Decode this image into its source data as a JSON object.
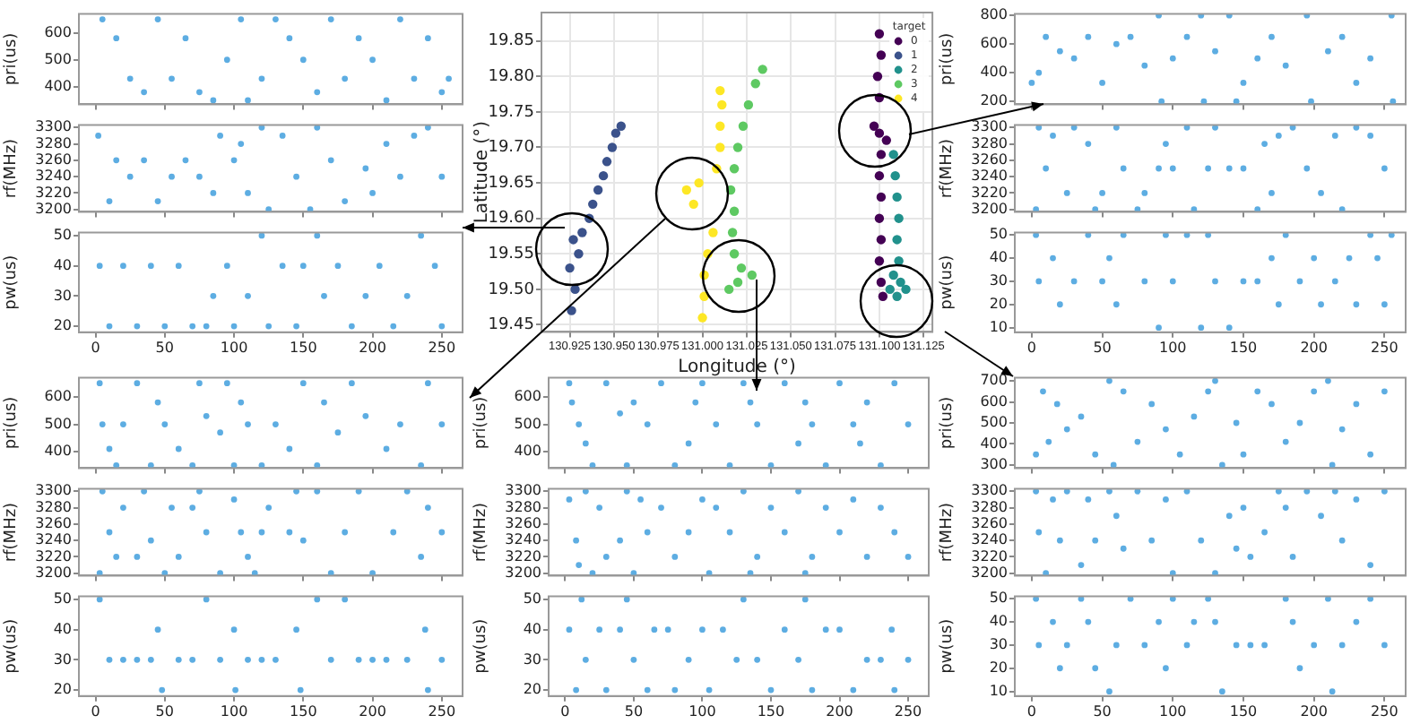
{
  "chart_data": [
    {
      "type": "scatter",
      "ylabel": "pri(us)",
      "xlim": [
        -12,
        265
      ],
      "xticks": [
        0,
        50,
        100,
        150,
        200,
        250
      ],
      "ylim": [
        335,
        670
      ],
      "yticks": [
        400,
        500,
        600
      ],
      "tick_labels": "y",
      "marker": "circle",
      "color": "#5dade2",
      "x": [
        5,
        15,
        25,
        35,
        45,
        55,
        65,
        75,
        85,
        95,
        105,
        110,
        120,
        130,
        140,
        150,
        160,
        170,
        180,
        190,
        200,
        210,
        220,
        230,
        240,
        250,
        255
      ],
      "values": [
        650,
        580,
        430,
        380,
        650,
        430,
        580,
        380,
        350,
        500,
        650,
        350,
        430,
        650,
        580,
        500,
        380,
        650,
        430,
        580,
        500,
        350,
        650,
        430,
        580,
        380,
        430
      ]
    },
    {
      "type": "scatter",
      "ylabel": "rf(MHz)",
      "xlim": [
        -12,
        265
      ],
      "xticks": [
        0,
        50,
        100,
        150,
        200,
        250
      ],
      "ylim": [
        3197,
        3303
      ],
      "yticks": [
        3200,
        3220,
        3240,
        3260,
        3280,
        3300
      ],
      "tick_labels": "y",
      "marker": "circle",
      "color": "#5dade2",
      "x": [
        2,
        10,
        15,
        25,
        35,
        45,
        55,
        65,
        75,
        85,
        90,
        100,
        105,
        110,
        120,
        125,
        135,
        145,
        155,
        160,
        170,
        180,
        195,
        200,
        210,
        220,
        230,
        240,
        250
      ],
      "values": [
        3290,
        3210,
        3260,
        3240,
        3260,
        3210,
        3240,
        3260,
        3240,
        3220,
        3290,
        3260,
        3280,
        3220,
        3300,
        3200,
        3290,
        3240,
        3200,
        3300,
        3260,
        3210,
        3250,
        3220,
        3280,
        3240,
        3290,
        3300,
        3240
      ]
    },
    {
      "type": "scatter",
      "ylabel": "pw(us)",
      "xlim": [
        -12,
        265
      ],
      "xticks": [
        0,
        50,
        100,
        150,
        200,
        250
      ],
      "ylim": [
        18,
        51
      ],
      "yticks": [
        20,
        30,
        40,
        50
      ],
      "marker": "circle",
      "color": "#5dade2",
      "x": [
        3,
        10,
        20,
        30,
        40,
        50,
        60,
        70,
        80,
        85,
        95,
        100,
        110,
        120,
        125,
        135,
        145,
        150,
        160,
        165,
        175,
        185,
        195,
        205,
        215,
        225,
        235,
        245,
        250
      ],
      "values": [
        40,
        20,
        40,
        20,
        40,
        20,
        40,
        20,
        20,
        30,
        40,
        20,
        30,
        50,
        20,
        40,
        20,
        40,
        50,
        30,
        40,
        20,
        30,
        40,
        20,
        30,
        50,
        40,
        20
      ]
    },
    {
      "type": "scatter",
      "xlabel": "Longitude (°)",
      "ylabel": "Latitude (°)",
      "legend_title": "target",
      "legend": "top right",
      "grid": true,
      "marker": "circle",
      "xlim": [
        130.909,
        131.13
      ],
      "xticks": [
        130.925,
        {
          "value": 130.95,
          "label": "130.950"
        },
        130.975,
        {
          "value": 131,
          "label": "131.000"
        },
        131.025,
        {
          "value": 131.05,
          "label": "131.050"
        },
        131.075,
        {
          "value": 131.1,
          "label": "131.100"
        },
        131.125
      ],
      "ylim": [
        19.44,
        19.89
      ],
      "yticks": [
        19.45,
        {
          "value": 19.5,
          "label": "19.50"
        },
        19.55,
        {
          "value": 19.6,
          "label": "19.60"
        },
        19.65,
        {
          "value": 19.7,
          "label": "19.70"
        },
        19.75,
        {
          "value": 19.8,
          "label": "19.80"
        },
        19.85
      ],
      "series": [
        {
          "name": "0",
          "color": "#440154",
          "x": [
            131.1,
            131.101,
            131.099,
            131.1,
            131.097,
            131.1,
            131.104,
            131.101,
            131.1,
            131.101,
            131.1,
            131.101,
            131.1,
            131.101,
            131.102
          ],
          "values": [
            19.86,
            19.83,
            19.8,
            19.77,
            19.73,
            19.72,
            19.71,
            19.69,
            19.66,
            19.63,
            19.6,
            19.57,
            19.54,
            19.51,
            19.49
          ]
        },
        {
          "name": "1",
          "color": "#3b528b",
          "x": [
            130.926,
            130.928,
            130.925,
            130.93,
            130.927,
            130.932,
            130.936,
            130.938,
            130.941,
            130.944,
            130.946,
            130.949,
            130.951,
            130.954
          ],
          "values": [
            19.47,
            19.5,
            19.53,
            19.55,
            19.57,
            19.58,
            19.6,
            19.62,
            19.64,
            19.66,
            19.68,
            19.7,
            19.72,
            19.73
          ]
        },
        {
          "name": "2",
          "color": "#21918c",
          "x": [
            131.108,
            131.109,
            131.11,
            131.111,
            131.11,
            131.111,
            131.108,
            131.112,
            131.106,
            131.11,
            131.115
          ],
          "values": [
            19.69,
            19.66,
            19.63,
            19.6,
            19.57,
            19.54,
            19.52,
            19.51,
            19.5,
            19.49,
            19.5
          ]
        },
        {
          "name": "3",
          "color": "#5ec962",
          "x": [
            131.015,
            131.02,
            131.022,
            131.018,
            131.017,
            131.018,
            131.016,
            131.018,
            131.02,
            131.023,
            131.026,
            131.03,
            131.034,
            131.028
          ],
          "values": [
            19.5,
            19.51,
            19.53,
            19.55,
            19.58,
            19.61,
            19.64,
            19.67,
            19.7,
            19.73,
            19.76,
            19.79,
            19.81,
            19.52
          ]
        },
        {
          "name": "4",
          "color": "#fde725",
          "x": [
            131,
            131.001,
            131.001,
            131.003,
            131.006,
            130.995,
            130.991,
            130.998,
            131.008,
            131.01,
            131.01,
            131.011,
            131.01
          ],
          "values": [
            19.46,
            19.49,
            19.52,
            19.55,
            19.58,
            19.62,
            19.64,
            19.65,
            19.67,
            19.7,
            19.73,
            19.76,
            19.78
          ]
        }
      ]
    },
    {
      "type": "scatter",
      "ylabel": "pri(us)",
      "xlim": [
        -12,
        265
      ],
      "xticks": [
        0,
        50,
        100,
        150,
        200,
        250
      ],
      "ylim": [
        180,
        810
      ],
      "yticks": [
        200,
        400,
        600,
        800
      ],
      "tick_labels": "y",
      "marker": "circle",
      "color": "#5dade2",
      "x": [
        0,
        5,
        10,
        20,
        30,
        40,
        50,
        60,
        70,
        80,
        90,
        92,
        100,
        110,
        120,
        122,
        130,
        140,
        145,
        150,
        160,
        170,
        180,
        195,
        198,
        210,
        220,
        230,
        240,
        255,
        256
      ],
      "values": [
        330,
        400,
        650,
        550,
        500,
        650,
        330,
        600,
        650,
        450,
        800,
        200,
        500,
        650,
        800,
        200,
        550,
        800,
        200,
        330,
        500,
        650,
        450,
        800,
        200,
        550,
        650,
        330,
        500,
        800,
        200
      ]
    },
    {
      "type": "scatter",
      "ylabel": "rf(MHz)",
      "xlim": [
        -12,
        265
      ],
      "xticks": [
        0,
        50,
        100,
        150,
        200,
        250
      ],
      "ylim": [
        3197,
        3303
      ],
      "yticks": [
        3200,
        3220,
        3240,
        3260,
        3280,
        3300
      ],
      "tick_labels": "y",
      "marker": "circle",
      "color": "#5dade2",
      "x": [
        3,
        5,
        10,
        15,
        25,
        30,
        40,
        45,
        50,
        60,
        65,
        75,
        80,
        90,
        95,
        100,
        110,
        115,
        125,
        130,
        140,
        150,
        160,
        165,
        170,
        175,
        185,
        195,
        205,
        215,
        220,
        230,
        240,
        250
      ],
      "values": [
        3200,
        3300,
        3250,
        3290,
        3220,
        3300,
        3280,
        3200,
        3220,
        3300,
        3250,
        3200,
        3220,
        3250,
        3280,
        3250,
        3300,
        3200,
        3250,
        3300,
        3250,
        3250,
        3200,
        3280,
        3220,
        3290,
        3300,
        3250,
        3220,
        3290,
        3200,
        3300,
        3290,
        3250
      ]
    },
    {
      "type": "scatter",
      "ylabel": "pw(us)",
      "xlim": [
        -12,
        265
      ],
      "xticks": [
        0,
        50,
        100,
        150,
        200,
        250
      ],
      "ylim": [
        8,
        51
      ],
      "yticks": [
        10,
        20,
        30,
        40,
        50
      ],
      "marker": "circle",
      "color": "#5dade2",
      "x": [
        3,
        5,
        15,
        20,
        30,
        40,
        50,
        55,
        60,
        65,
        80,
        90,
        95,
        100,
        110,
        120,
        125,
        130,
        140,
        150,
        160,
        170,
        175,
        180,
        190,
        200,
        205,
        215,
        225,
        230,
        240,
        245,
        250,
        255
      ],
      "values": [
        50,
        30,
        40,
        20,
        30,
        50,
        30,
        40,
        20,
        50,
        30,
        10,
        50,
        30,
        50,
        10,
        50,
        30,
        10,
        30,
        30,
        40,
        20,
        50,
        30,
        40,
        20,
        30,
        40,
        20,
        50,
        40,
        20,
        50
      ]
    },
    {
      "type": "scatter",
      "ylabel": "pri(us)",
      "xlim": [
        -12,
        265
      ],
      "xticks": [
        0,
        50,
        100,
        150,
        200,
        250
      ],
      "ylim": [
        340,
        670
      ],
      "yticks": [
        400,
        500,
        600
      ],
      "tick_labels": "y",
      "marker": "circle",
      "color": "#5dade2",
      "x": [
        3,
        5,
        10,
        15,
        20,
        30,
        40,
        45,
        50,
        60,
        70,
        75,
        80,
        90,
        95,
        100,
        105,
        110,
        120,
        130,
        140,
        150,
        160,
        165,
        175,
        185,
        195,
        210,
        220,
        235,
        240,
        250
      ],
      "values": [
        650,
        500,
        410,
        350,
        500,
        650,
        350,
        580,
        500,
        410,
        350,
        650,
        530,
        470,
        650,
        350,
        580,
        500,
        350,
        500,
        410,
        650,
        350,
        580,
        470,
        650,
        530,
        410,
        500,
        350,
        650,
        500
      ]
    },
    {
      "type": "scatter",
      "ylabel": "rf(MHz)",
      "xlim": [
        -12,
        265
      ],
      "xticks": [
        0,
        50,
        100,
        150,
        200,
        250
      ],
      "ylim": [
        3197,
        3303
      ],
      "yticks": [
        3200,
        3220,
        3240,
        3260,
        3280,
        3300
      ],
      "tick_labels": "y",
      "marker": "circle",
      "color": "#5dade2",
      "x": [
        3,
        5,
        10,
        15,
        20,
        30,
        35,
        40,
        50,
        55,
        60,
        70,
        75,
        80,
        90,
        100,
        105,
        110,
        115,
        120,
        125,
        140,
        145,
        150,
        160,
        170,
        180,
        190,
        200,
        215,
        225,
        235,
        240,
        250
      ],
      "values": [
        3200,
        3300,
        3250,
        3220,
        3280,
        3220,
        3300,
        3240,
        3200,
        3280,
        3220,
        3280,
        3300,
        3250,
        3200,
        3290,
        3250,
        3220,
        3200,
        3250,
        3280,
        3250,
        3300,
        3240,
        3300,
        3200,
        3250,
        3300,
        3200,
        3250,
        3300,
        3220,
        3280,
        3250
      ]
    },
    {
      "type": "scatter",
      "ylabel": "pw(us)",
      "xlim": [
        -12,
        265
      ],
      "xticks": [
        0,
        50,
        100,
        150,
        200,
        250
      ],
      "ylim": [
        18,
        51
      ],
      "yticks": [
        20,
        30,
        40,
        50
      ],
      "marker": "circle",
      "color": "#5dade2",
      "x": [
        3,
        10,
        20,
        30,
        40,
        45,
        48,
        60,
        70,
        80,
        90,
        100,
        101,
        110,
        120,
        130,
        145,
        148,
        160,
        170,
        180,
        190,
        200,
        210,
        225,
        238,
        240,
        250
      ],
      "values": [
        50,
        30,
        30,
        30,
        30,
        40,
        20,
        30,
        30,
        50,
        30,
        40,
        20,
        30,
        30,
        30,
        40,
        20,
        50,
        30,
        50,
        30,
        30,
        30,
        30,
        40,
        20,
        30
      ]
    },
    {
      "type": "scatter",
      "ylabel": "pri(us)",
      "xlim": [
        -12,
        265
      ],
      "xticks": [
        0,
        50,
        100,
        150,
        200,
        250
      ],
      "ylim": [
        340,
        670
      ],
      "yticks": [
        400,
        500,
        600
      ],
      "tick_labels": "y",
      "marker": "circle",
      "color": "#5dade2",
      "x": [
        3,
        5,
        10,
        15,
        20,
        30,
        40,
        45,
        50,
        60,
        70,
        80,
        90,
        95,
        100,
        110,
        120,
        130,
        135,
        140,
        150,
        160,
        170,
        175,
        180,
        190,
        200,
        210,
        215,
        220,
        230,
        240,
        250
      ],
      "values": [
        650,
        580,
        500,
        430,
        350,
        650,
        540,
        350,
        580,
        500,
        650,
        350,
        430,
        580,
        650,
        500,
        350,
        650,
        580,
        500,
        350,
        650,
        430,
        580,
        500,
        350,
        650,
        500,
        430,
        580,
        350,
        650,
        500
      ]
    },
    {
      "type": "scatter",
      "ylabel": "rf(MHz)",
      "xlim": [
        -12,
        265
      ],
      "xticks": [
        0,
        50,
        100,
        150,
        200,
        250
      ],
      "ylim": [
        3197,
        3303
      ],
      "yticks": [
        3200,
        3220,
        3240,
        3260,
        3280,
        3300
      ],
      "tick_labels": "y",
      "marker": "circle",
      "color": "#5dade2",
      "x": [
        3,
        8,
        10,
        15,
        20,
        25,
        30,
        40,
        45,
        50,
        55,
        60,
        70,
        80,
        90,
        100,
        105,
        110,
        120,
        130,
        135,
        140,
        150,
        160,
        170,
        175,
        180,
        190,
        200,
        210,
        220,
        230,
        240,
        250
      ],
      "values": [
        3290,
        3240,
        3210,
        3300,
        3200,
        3280,
        3220,
        3240,
        3300,
        3200,
        3290,
        3250,
        3280,
        3220,
        3250,
        3290,
        3200,
        3280,
        3250,
        3300,
        3200,
        3220,
        3280,
        3250,
        3300,
        3200,
        3220,
        3280,
        3250,
        3290,
        3220,
        3280,
        3250,
        3220
      ]
    },
    {
      "type": "scatter",
      "ylabel": "pw(us)",
      "xlim": [
        -12,
        265
      ],
      "xticks": [
        0,
        50,
        100,
        150,
        200,
        250
      ],
      "ylim": [
        18,
        51
      ],
      "yticks": [
        20,
        30,
        40,
        50
      ],
      "marker": "circle",
      "color": "#5dade2",
      "x": [
        3,
        8,
        12,
        15,
        25,
        30,
        40,
        45,
        50,
        60,
        65,
        75,
        80,
        90,
        100,
        105,
        115,
        125,
        130,
        140,
        150,
        160,
        170,
        175,
        180,
        190,
        200,
        210,
        220,
        230,
        238,
        240,
        250
      ],
      "values": [
        40,
        20,
        50,
        30,
        40,
        20,
        40,
        50,
        30,
        20,
        40,
        40,
        20,
        30,
        40,
        20,
        40,
        30,
        50,
        30,
        20,
        40,
        30,
        50,
        20,
        40,
        40,
        20,
        30,
        30,
        40,
        20,
        30
      ]
    },
    {
      "type": "scatter",
      "ylabel": "pri(us)",
      "xlim": [
        -12,
        265
      ],
      "xticks": [
        0,
        50,
        100,
        150,
        200,
        250
      ],
      "ylim": [
        285,
        715
      ],
      "yticks": [
        300,
        400,
        500,
        600,
        700
      ],
      "tick_labels": "y",
      "marker": "circle",
      "color": "#5dade2",
      "x": [
        3,
        8,
        12,
        18,
        25,
        35,
        45,
        55,
        58,
        65,
        75,
        85,
        95,
        105,
        115,
        125,
        130,
        135,
        145,
        150,
        160,
        170,
        180,
        190,
        200,
        210,
        213,
        220,
        230,
        240,
        250
      ],
      "values": [
        350,
        650,
        410,
        590,
        470,
        530,
        350,
        700,
        300,
        650,
        410,
        590,
        470,
        350,
        530,
        650,
        700,
        300,
        500,
        350,
        650,
        590,
        410,
        500,
        650,
        700,
        300,
        470,
        590,
        350,
        650
      ]
    },
    {
      "type": "scatter",
      "ylabel": "rf(MHz)",
      "xlim": [
        -12,
        265
      ],
      "xticks": [
        0,
        50,
        100,
        150,
        200,
        250
      ],
      "ylim": [
        3197,
        3303
      ],
      "yticks": [
        3200,
        3220,
        3240,
        3260,
        3280,
        3300
      ],
      "tick_labels": "y",
      "marker": "circle",
      "color": "#5dade2",
      "x": [
        3,
        5,
        10,
        15,
        20,
        25,
        35,
        40,
        45,
        55,
        60,
        65,
        75,
        85,
        95,
        100,
        110,
        120,
        130,
        140,
        145,
        150,
        155,
        165,
        175,
        180,
        185,
        195,
        205,
        215,
        220,
        230,
        240,
        250
      ],
      "values": [
        3300,
        3250,
        3200,
        3290,
        3240,
        3300,
        3210,
        3290,
        3240,
        3300,
        3270,
        3230,
        3300,
        3240,
        3290,
        3200,
        3300,
        3240,
        3200,
        3270,
        3230,
        3280,
        3220,
        3250,
        3300,
        3280,
        3220,
        3300,
        3270,
        3300,
        3240,
        3290,
        3210,
        3300
      ]
    },
    {
      "type": "scatter",
      "ylabel": "pw(us)",
      "xlim": [
        -12,
        265
      ],
      "xticks": [
        0,
        50,
        100,
        150,
        200,
        250
      ],
      "ylim": [
        8,
        51
      ],
      "yticks": [
        10,
        20,
        30,
        40,
        50
      ],
      "marker": "circle",
      "color": "#5dade2",
      "x": [
        3,
        5,
        15,
        20,
        25,
        35,
        40,
        45,
        55,
        60,
        70,
        80,
        90,
        95,
        100,
        110,
        115,
        125,
        130,
        135,
        145,
        155,
        165,
        180,
        185,
        190,
        200,
        210,
        213,
        220,
        230,
        240,
        250
      ],
      "values": [
        50,
        30,
        40,
        20,
        30,
        50,
        40,
        20,
        10,
        30,
        50,
        30,
        40,
        20,
        50,
        30,
        40,
        50,
        40,
        10,
        30,
        30,
        30,
        50,
        40,
        20,
        30,
        50,
        10,
        30,
        40,
        50,
        30
      ]
    }
  ]
}
